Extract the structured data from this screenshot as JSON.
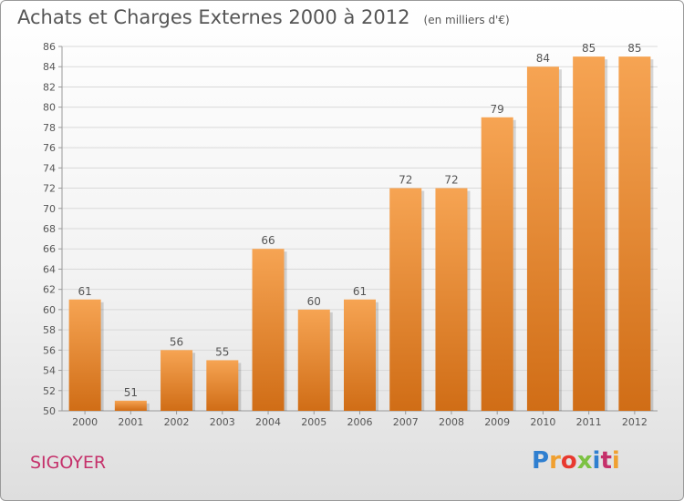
{
  "header": {
    "title": "Achats et Charges Externes 2000 à 2012",
    "unit": "(en milliers d'€)"
  },
  "footer": {
    "commune": "SIGOYER",
    "brand": "Proxiti",
    "brand_letters": [
      {
        "char": "P",
        "color": "#2f7fd0"
      },
      {
        "char": "r",
        "color": "#f0a030"
      },
      {
        "char": "o",
        "color": "#e8392f"
      },
      {
        "char": "x",
        "color": "#7cc242"
      },
      {
        "char": "i",
        "color": "#2f7fd0"
      },
      {
        "char": "t",
        "color": "#c5306a"
      },
      {
        "char": "i",
        "color": "#f0a030"
      }
    ]
  },
  "colors": {
    "bar_light": "#f6a453",
    "bar_dark": "#d06d16",
    "grid": "#d9d9d9",
    "text": "#555555",
    "commune": "#c5306a"
  },
  "chart_data": {
    "type": "bar",
    "categories": [
      "2000",
      "2001",
      "2002",
      "2003",
      "2004",
      "2005",
      "2006",
      "2007",
      "2008",
      "2009",
      "2010",
      "2011",
      "2012"
    ],
    "values": [
      61,
      51,
      56,
      55,
      66,
      60,
      61,
      72,
      72,
      79,
      84,
      85,
      85
    ],
    "yticks": [
      50,
      52,
      54,
      56,
      58,
      60,
      62,
      64,
      66,
      68,
      70,
      72,
      74,
      76,
      78,
      80,
      82,
      84,
      86
    ],
    "ylim": [
      50,
      86
    ],
    "grid": true,
    "legend": "none",
    "data_labels": true
  }
}
